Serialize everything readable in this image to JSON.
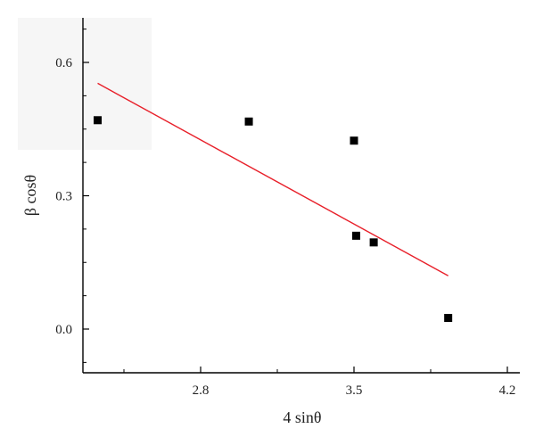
{
  "chart_data": {
    "type": "scatter",
    "title": "",
    "xlabel": "4 sinθ",
    "ylabel": "β cosθ",
    "xlim": [
      2.05,
      4.25
    ],
    "ylim": [
      -0.1,
      0.7
    ],
    "xticks": [
      2.8,
      3.5,
      4.2
    ],
    "yticks": [
      0.0,
      0.3,
      0.6
    ],
    "xtick_labels": [
      "2.8",
      "3.5",
      "4.2"
    ],
    "ytick_labels": [
      "0.0",
      "0.3",
      "0.6"
    ],
    "grid": false,
    "legend": "none",
    "series": [
      {
        "kind": "points",
        "marker": "square",
        "color": "#000000",
        "x": [
          2.33,
          3.02,
          3.5,
          3.51,
          3.59,
          3.93
        ],
        "y": [
          0.47,
          0.467,
          0.424,
          0.21,
          0.195,
          0.025
        ]
      },
      {
        "kind": "fit-line",
        "color": "#e8202a",
        "x": [
          2.33,
          3.93
        ],
        "y": [
          0.553,
          0.12
        ]
      }
    ]
  }
}
